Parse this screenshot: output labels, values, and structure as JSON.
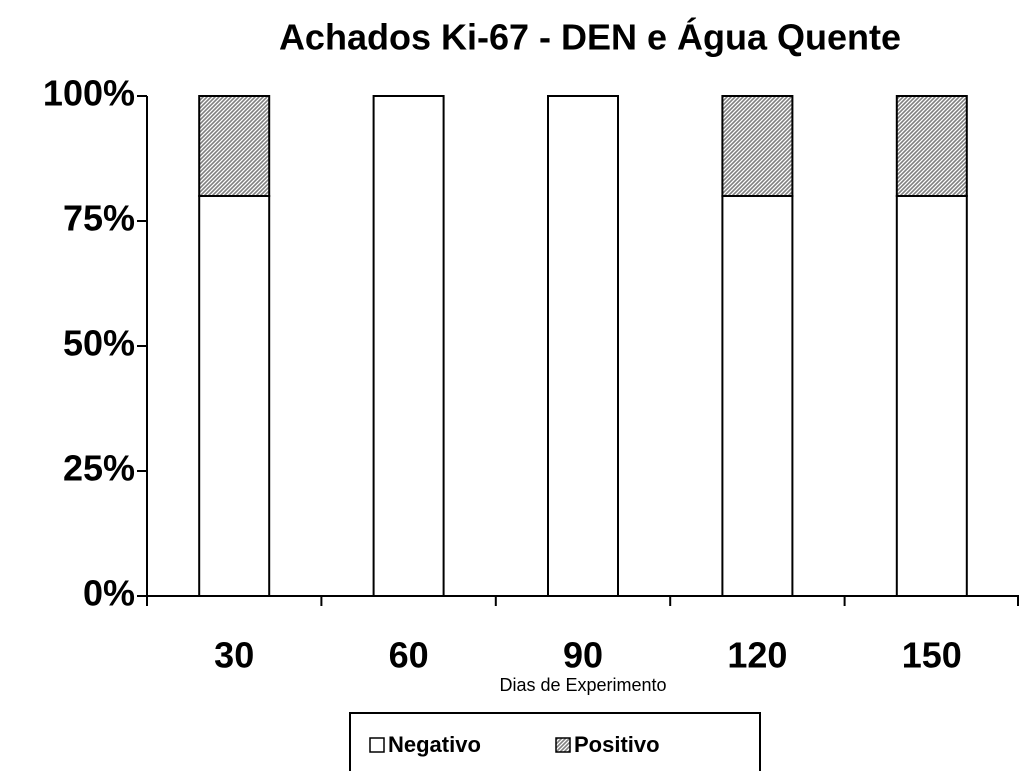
{
  "chart_data": {
    "type": "stacked_bar",
    "title": "Achados Ki-67 - DEN e Água Quente",
    "x_label": "Dias de Experimento",
    "categories": [
      "30",
      "60",
      "90",
      "120",
      "150"
    ],
    "series": [
      {
        "name": "Negativo",
        "color": "#ffffff",
        "values": [
          80,
          100,
          100,
          80,
          80
        ]
      },
      {
        "name": "Positivo",
        "color": "#808080",
        "hatch": true,
        "values": [
          20,
          0,
          0,
          20,
          20
        ]
      }
    ],
    "ylim": [
      0,
      100
    ],
    "yticks": [
      {
        "value": 0,
        "label": "0%"
      },
      {
        "value": 25,
        "label": "25%"
      },
      {
        "value": 50,
        "label": "50%"
      },
      {
        "value": 75,
        "label": "75%"
      },
      {
        "value": 100,
        "label": "100%"
      }
    ],
    "legend": "bottom"
  }
}
